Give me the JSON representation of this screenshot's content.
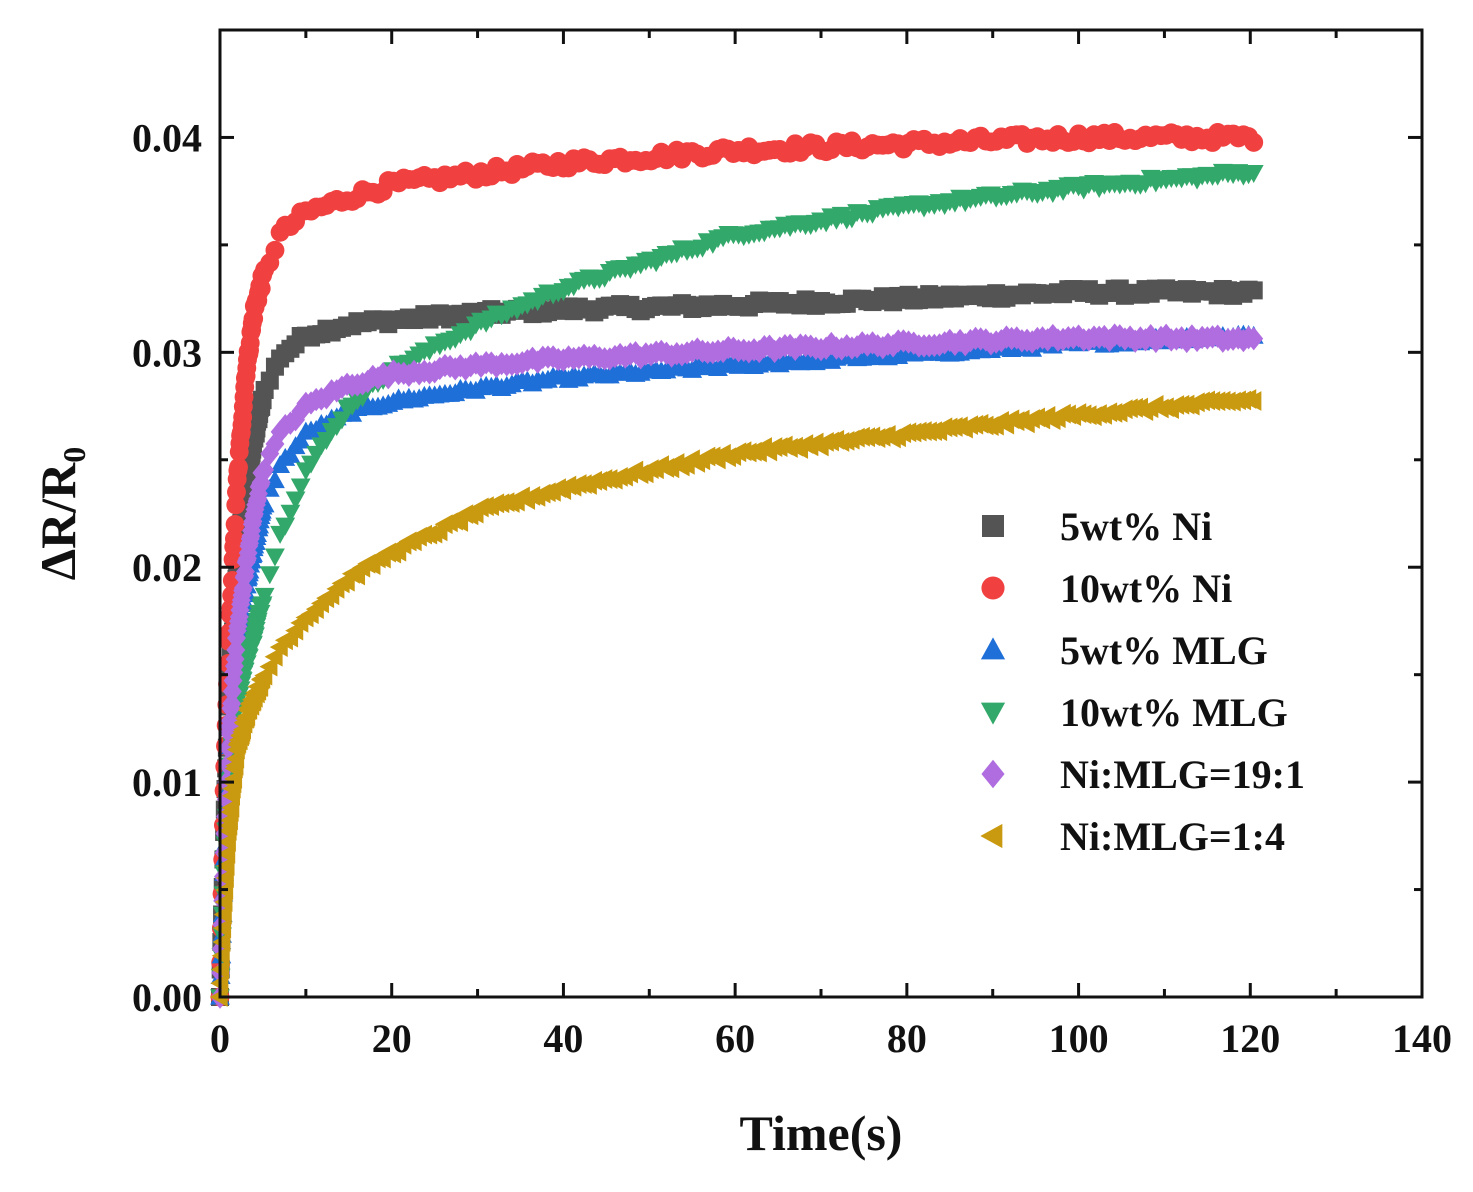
{
  "chart_data": {
    "type": "scatter",
    "xlabel": "Time(s)",
    "ylabel": "ΔR/R",
    "ylabel_subscript": "0",
    "xlim": [
      0,
      140
    ],
    "ylim": [
      0,
      0.045
    ],
    "x_ticks": [
      0,
      20,
      40,
      60,
      80,
      100,
      120,
      140
    ],
    "x_tick_labels": [
      "0",
      "20",
      "40",
      "60",
      "80",
      "100",
      "120",
      "140"
    ],
    "y_ticks": [
      0,
      0.01,
      0.02,
      0.03,
      0.04
    ],
    "y_tick_labels": [
      "0.00",
      "0.01",
      "0.02",
      "0.03",
      "0.04"
    ],
    "grid": false,
    "legend_position": "center-right",
    "series": [
      {
        "name": "5wt% Ni",
        "marker": "square",
        "color": "#545454",
        "x": [
          0,
          0.5,
          1,
          2,
          3,
          4,
          5,
          7,
          10,
          15,
          20,
          30,
          40,
          60,
          80,
          100,
          120
        ],
        "y": [
          0,
          0.008,
          0.014,
          0.02,
          0.024,
          0.026,
          0.028,
          0.0298,
          0.0308,
          0.0313,
          0.0315,
          0.0318,
          0.032,
          0.0322,
          0.0325,
          0.0328,
          0.0328
        ]
      },
      {
        "name": "10wt% Ni",
        "marker": "circle",
        "color": "#f04040",
        "x": [
          0,
          0.5,
          1,
          2,
          3,
          4,
          5,
          7,
          10,
          15,
          20,
          30,
          40,
          60,
          80,
          100,
          120
        ],
        "y": [
          0,
          0.01,
          0.016,
          0.024,
          0.029,
          0.032,
          0.0335,
          0.0355,
          0.0365,
          0.0372,
          0.0378,
          0.0383,
          0.0388,
          0.0394,
          0.0397,
          0.04,
          0.04
        ]
      },
      {
        "name": "5wt% MLG",
        "marker": "triangle-up",
        "color": "#1f6fd8",
        "x": [
          0,
          0.5,
          1,
          2,
          3,
          4,
          5,
          7,
          10,
          15,
          20,
          30,
          40,
          60,
          80,
          100,
          120
        ],
        "y": [
          0,
          0.006,
          0.01,
          0.016,
          0.019,
          0.021,
          0.0228,
          0.0247,
          0.0262,
          0.0272,
          0.0277,
          0.0283,
          0.0288,
          0.0294,
          0.0299,
          0.0304,
          0.0308
        ]
      },
      {
        "name": "10wt% MLG",
        "marker": "triangle-down",
        "color": "#32a86a",
        "x": [
          0,
          0.5,
          1,
          2,
          3,
          4,
          5,
          7,
          10,
          15,
          20,
          30,
          40,
          60,
          80,
          100,
          120
        ],
        "y": [
          0,
          0.006,
          0.01,
          0.0138,
          0.0155,
          0.0168,
          0.0185,
          0.0215,
          0.0245,
          0.0275,
          0.0292,
          0.0313,
          0.033,
          0.0355,
          0.0368,
          0.0377,
          0.0384
        ]
      },
      {
        "name": "Ni:MLG=19:1",
        "marker": "diamond",
        "color": "#b06de0",
        "x": [
          0,
          0.5,
          1,
          2,
          3,
          4,
          5,
          7,
          10,
          15,
          20,
          30,
          40,
          60,
          80,
          100,
          120
        ],
        "y": [
          0,
          0.007,
          0.012,
          0.017,
          0.02,
          0.0225,
          0.0245,
          0.0262,
          0.0275,
          0.0285,
          0.029,
          0.0294,
          0.0297,
          0.0301,
          0.0304,
          0.0307,
          0.0306
        ]
      },
      {
        "name": "Ni:MLG=1:4",
        "marker": "triangle-left",
        "color": "#c99a10",
        "x": [
          0,
          0.5,
          1,
          2,
          3,
          4,
          5,
          7,
          10,
          15,
          20,
          30,
          40,
          60,
          80,
          100,
          120
        ],
        "y": [
          0,
          0.004,
          0.0075,
          0.0115,
          0.013,
          0.014,
          0.0148,
          0.0163,
          0.0177,
          0.0195,
          0.0207,
          0.0226,
          0.0237,
          0.0253,
          0.0262,
          0.0271,
          0.0278
        ]
      }
    ]
  }
}
